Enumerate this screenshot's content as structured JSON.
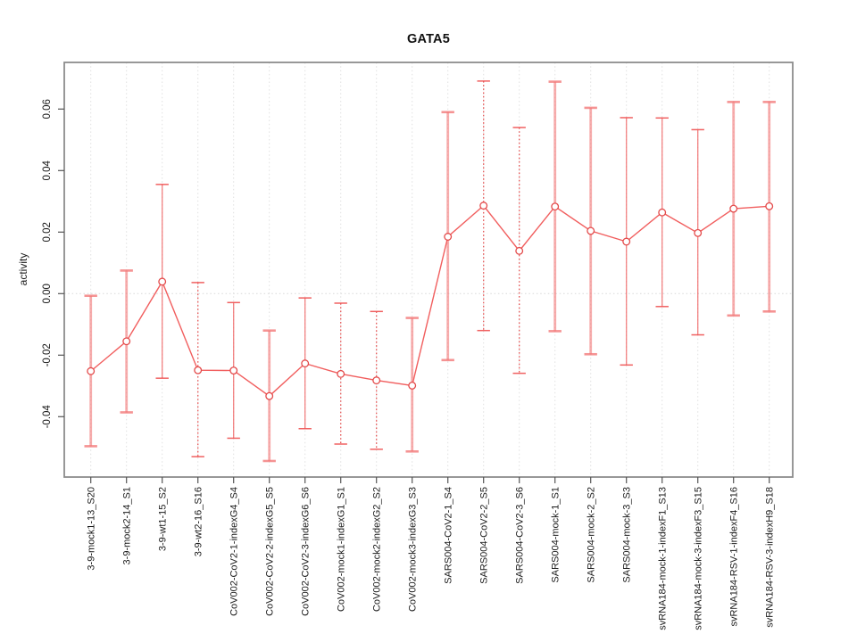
{
  "chart_data": {
    "type": "line",
    "title": "GATA5",
    "xlabel": "",
    "ylabel": "activity",
    "ylim": [
      -0.0596,
      0.0752
    ],
    "y_ticks": [
      0.06,
      0.04,
      0.02,
      0.0,
      -0.02,
      -0.04
    ],
    "zero_reference_line": 0.0,
    "grid": "vertical dotted gridline at each category; horizontal dotted line at zero",
    "legend_position": "none",
    "marker": "open-circle",
    "categories": [
      "3-9-mock1-13_S20",
      "3-9-mock2-14_S1",
      "3-9-wt1-15_S2",
      "3-9-wt2-16_S16",
      "CoV002-CoV2-1-indexG4_S4",
      "CoV002-CoV2-2-indexG5_S5",
      "CoV002-CoV2-3-indexG6_S6",
      "CoV002-mock1-indexG1_S1",
      "CoV002-mock2-indexG2_S2",
      "CoV002-mock3-indexG3_S3",
      "SARS004-CoV2-1_S4",
      "SARS004-CoV2-2_S5",
      "SARS004-CoV2-3_S6",
      "SARS004-mock-1_S1",
      "SARS004-mock-2_S2",
      "SARS004-mock-3_S3",
      "svRNA184-mock-1-indexF1_S13",
      "svRNA184-mock-3-indexF3_S15",
      "svRNA184-RSV-1-indexF4_S16",
      "svRNA184-RSV-3-indexH9_S18"
    ],
    "series": [
      {
        "name": "activity",
        "values": [
          -0.0252,
          -0.0155,
          0.0039,
          -0.0249,
          -0.025,
          -0.0333,
          -0.0227,
          -0.0261,
          -0.0282,
          -0.0299,
          0.0185,
          0.0286,
          0.0139,
          0.0283,
          0.0204,
          0.0169,
          0.0264,
          0.0197,
          0.0276,
          0.0284
        ],
        "error_low": [
          -0.0496,
          -0.0386,
          -0.0275,
          -0.053,
          -0.047,
          -0.0544,
          -0.0439,
          -0.0489,
          -0.0506,
          -0.0513,
          -0.0216,
          -0.012,
          -0.0259,
          -0.0122,
          -0.0197,
          -0.0232,
          -0.0042,
          -0.0134,
          -0.0071,
          -0.0058
        ],
        "error_high": [
          -0.0007,
          0.0075,
          0.0355,
          0.0036,
          -0.0029,
          -0.012,
          -0.0014,
          -0.0031,
          -0.0058,
          -0.0079,
          0.059,
          0.0691,
          0.054,
          0.0689,
          0.0604,
          0.0572,
          0.0571,
          0.0533,
          0.0623,
          0.0623
        ],
        "stem_styles": [
          "bold",
          "bold",
          "light",
          "dotted",
          "light",
          "bold",
          "light",
          "dotted",
          "dotted",
          "bold",
          "bold",
          "dotted",
          "dotted",
          "bold",
          "bold",
          "light",
          "light",
          "light",
          "bold",
          "bold"
        ]
      }
    ],
    "colors": {
      "series": "#F15E5E",
      "marker_stroke": "#E34A4A",
      "stem_light": "rgba(240,95,95,0.78)",
      "stem_bold": "rgba(243,128,128,0.65)",
      "stem_dotted": "rgba(228,68,68,0.9)",
      "cap_light": "rgba(238,80,80,0.9)",
      "cap_bold": "rgba(243,120,120,0.8)",
      "grid": "#E0E0E0",
      "zero_line": "#D8D8D8",
      "frame": "#8C8C8C",
      "tick": "#555555",
      "tick_label": "#1A1A1A"
    }
  }
}
